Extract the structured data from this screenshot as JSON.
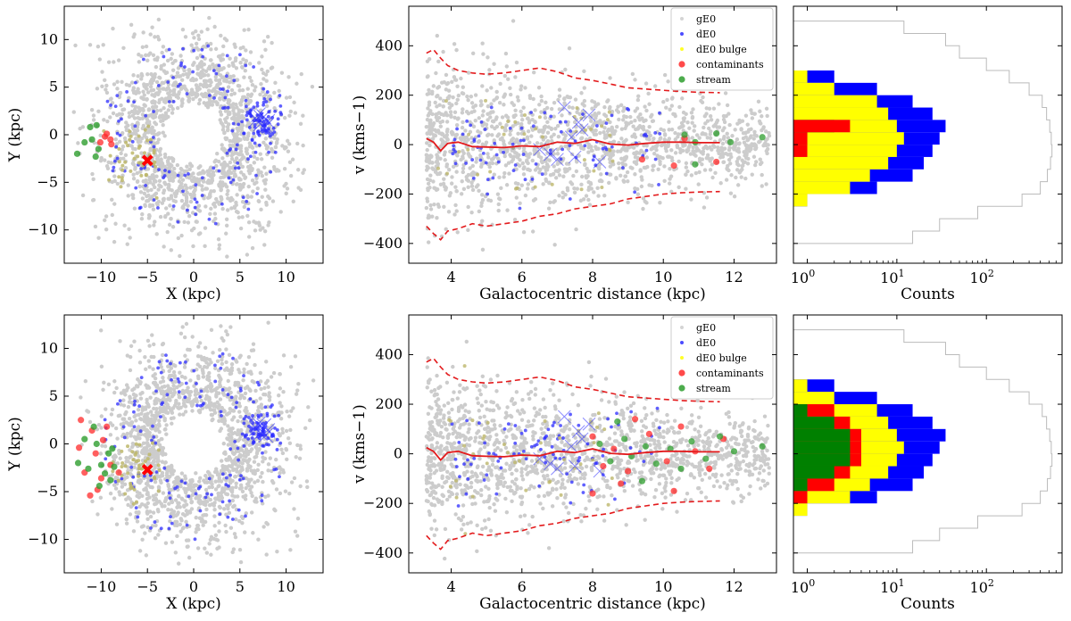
{
  "colors": {
    "gE0": "#cccccc",
    "dE0": "#2b2bff",
    "bulge": "#bdb76b",
    "contaminants": "#ff2a2a",
    "stream": "#2e9e2e",
    "median": "#e31a1c",
    "hist_blue": "#0000ff",
    "hist_yellow": "#ffff00",
    "hist_green": "#008000",
    "hist_red": "#ff0000",
    "hist_grey": "#bbbbbb",
    "marker": "#ff0000"
  },
  "chart_data": [
    {
      "type": "scatter",
      "name": "positions-top",
      "xlabel": "X (kpc)",
      "ylabel": "Y (kpc)",
      "xlim": [
        -14,
        14
      ],
      "ylim": [
        -13.5,
        13.5
      ],
      "xticks": [
        -10,
        -5,
        0,
        5,
        10
      ],
      "yticks": [
        -10,
        -5,
        0,
        5,
        10
      ],
      "xtick_labels": [
        "−10",
        "−5",
        "0",
        "5",
        "10"
      ],
      "ytick_labels": [
        "−10",
        "−5",
        "0",
        "5",
        "10"
      ],
      "progenitor_center": [
        -5,
        -2.7
      ],
      "stream_points": [
        [
          -11.2,
          0.8
        ],
        [
          -10.5,
          1.0
        ],
        [
          -11.8,
          -0.8
        ],
        [
          -10.3,
          -1.5
        ],
        [
          -10.6,
          -2.3
        ],
        [
          -12.6,
          -2.0
        ],
        [
          -11.0,
          -0.5
        ]
      ],
      "contaminant_points": [
        [
          -9.6,
          -0.2
        ],
        [
          -9.0,
          -0.5
        ],
        [
          -10.1,
          -0.8
        ],
        [
          -8.9,
          -1.0
        ],
        [
          -9.4,
          0.1
        ]
      ],
      "dE0_cross_points": [
        [
          6.8,
          1.6
        ],
        [
          7.2,
          1.1
        ],
        [
          7.6,
          1.9
        ],
        [
          8.0,
          1.4
        ],
        [
          7.0,
          2.1
        ],
        [
          7.8,
          0.9
        ]
      ]
    },
    {
      "type": "scatter",
      "name": "velocity-top",
      "xlabel": "Galactocentric distance (kpc)",
      "ylabel": "v (kms−1)",
      "xlim": [
        2.8,
        13.2
      ],
      "ylim": [
        -480,
        560
      ],
      "xticks": [
        4,
        6,
        8,
        10,
        12
      ],
      "yticks": [
        -400,
        -200,
        0,
        200,
        400
      ],
      "xtick_labels": [
        "4",
        "6",
        "8",
        "10",
        "12"
      ],
      "ytick_labels": [
        "−400",
        "−200",
        "0",
        "200",
        "400"
      ],
      "legend": {
        "position": "top-right",
        "entries": [
          "gE0",
          "dE0",
          "dE0 bulge",
          "contaminants",
          "stream"
        ]
      },
      "median_line": {
        "x": [
          3.3,
          3.5,
          3.7,
          3.9,
          4.2,
          4.6,
          5.0,
          5.5,
          6.0,
          6.5,
          7.0,
          7.5,
          8.0,
          8.5,
          9.0,
          9.5,
          10.0,
          10.5,
          11.0,
          11.6
        ],
        "y": [
          25,
          10,
          -25,
          5,
          10,
          -8,
          -10,
          -12,
          -5,
          -8,
          10,
          5,
          20,
          2,
          -2,
          5,
          10,
          10,
          8,
          8
        ]
      },
      "upper_envelope": {
        "x": [
          3.3,
          3.5,
          3.7,
          3.9,
          4.2,
          4.6,
          5.0,
          5.5,
          6.0,
          6.5,
          7.0,
          7.5,
          8.0,
          8.5,
          9.0,
          9.5,
          10.0,
          10.5,
          11.0,
          11.6
        ],
        "y": [
          370,
          385,
          350,
          320,
          300,
          290,
          285,
          290,
          300,
          310,
          295,
          270,
          260,
          245,
          230,
          225,
          220,
          215,
          212,
          210
        ]
      },
      "lower_envelope": {
        "x": [
          3.3,
          3.5,
          3.7,
          3.9,
          4.2,
          4.6,
          5.0,
          5.5,
          6.0,
          6.5,
          7.0,
          7.5,
          8.0,
          8.5,
          9.0,
          9.5,
          10.0,
          10.5,
          11.0,
          11.6
        ],
        "y": [
          -330,
          -360,
          -385,
          -350,
          -340,
          -320,
          -330,
          -320,
          -310,
          -290,
          -280,
          -260,
          -250,
          -240,
          -220,
          -210,
          -200,
          -195,
          -192,
          -190
        ]
      },
      "stream_points": [
        [
          10.6,
          40
        ],
        [
          10.9,
          10
        ],
        [
          11.5,
          45
        ],
        [
          11.9,
          10
        ],
        [
          12.8,
          30
        ],
        [
          10.9,
          -80
        ]
      ],
      "contaminant_points": [
        [
          9.4,
          -60
        ],
        [
          10.3,
          -85
        ],
        [
          11.5,
          -70
        ],
        [
          10.6,
          25
        ]
      ],
      "dE0_cross_points": [
        [
          6.5,
          -20
        ],
        [
          6.8,
          -40
        ],
        [
          7.0,
          -60
        ],
        [
          7.2,
          150
        ],
        [
          7.4,
          30
        ],
        [
          7.6,
          90
        ],
        [
          7.7,
          60
        ],
        [
          7.9,
          120
        ],
        [
          8.2,
          -70
        ],
        [
          7.5,
          -50
        ]
      ]
    },
    {
      "type": "histogram",
      "name": "hist-top",
      "orientation": "horizontal",
      "xlabel": "Counts",
      "xscale": "log",
      "xlim": [
        0.7,
        700
      ],
      "ylim": [
        -480,
        560
      ],
      "xticks": [
        1,
        10,
        100
      ],
      "xtick_labels": [
        "10^0",
        "10^1",
        "10^2"
      ],
      "bin_edges": [
        -400,
        -350,
        -300,
        -250,
        -200,
        -150,
        -100,
        -50,
        0,
        50,
        100,
        150,
        200,
        250,
        300,
        350,
        400,
        450,
        500
      ],
      "series": [
        {
          "name": "gE0",
          "counts": [
            15,
            30,
            80,
            250,
            400,
            480,
            520,
            540,
            530,
            510,
            470,
            420,
            300,
            180,
            100,
            50,
            35,
            12
          ]
        },
        {
          "name": "dE0",
          "counts": [
            0,
            0,
            0,
            1,
            6,
            15,
            20,
            25,
            30,
            35,
            25,
            15,
            6,
            2,
            0,
            0,
            0,
            0
          ]
        },
        {
          "name": "dE0 bulge",
          "counts": [
            0,
            0,
            0,
            1,
            3,
            5,
            8,
            10,
            12,
            10,
            8,
            6,
            2,
            1,
            0,
            0,
            0,
            0
          ]
        },
        {
          "name": "stream",
          "counts": [
            0,
            0,
            0,
            0,
            0,
            0,
            0,
            0,
            1,
            2,
            0,
            0,
            0,
            0,
            0,
            0,
            0,
            0
          ]
        },
        {
          "name": "contaminants",
          "counts": [
            0,
            0,
            0,
            0,
            0,
            0,
            0,
            1,
            1,
            3,
            0,
            0,
            0,
            0,
            0,
            0,
            0,
            0
          ]
        }
      ]
    },
    {
      "type": "scatter",
      "name": "positions-bottom",
      "xlabel": "X (kpc)",
      "ylabel": "Y (kpc)",
      "xlim": [
        -14,
        14
      ],
      "ylim": [
        -13.5,
        13.5
      ],
      "xticks": [
        -10,
        -5,
        0,
        5,
        10
      ],
      "yticks": [
        -10,
        -5,
        0,
        5,
        10
      ],
      "xtick_labels": [
        "−10",
        "−5",
        "0",
        "5",
        "10"
      ],
      "ytick_labels": [
        "−10",
        "−5",
        "0",
        "5",
        "10"
      ],
      "progenitor_center": [
        -5,
        -2.7
      ],
      "stream_points": [
        [
          -10.8,
          1.8
        ],
        [
          -11.8,
          0.5
        ],
        [
          -10.5,
          0.0
        ],
        [
          -9.2,
          -1.0
        ],
        [
          -10.0,
          -2.2
        ],
        [
          -11.4,
          -2.6
        ],
        [
          -8.6,
          -2.4
        ],
        [
          -9.6,
          -3.1
        ],
        [
          -12.5,
          -2.0
        ],
        [
          -8.8,
          -0.5
        ],
        [
          -10.2,
          -4.4
        ],
        [
          -9.0,
          -3.8
        ]
      ],
      "contaminant_points": [
        [
          -12.2,
          2.5
        ],
        [
          -11.0,
          1.4
        ],
        [
          -9.4,
          1.8
        ],
        [
          -10.6,
          -1.0
        ],
        [
          -11.8,
          -3.0
        ],
        [
          -9.0,
          -2.2
        ],
        [
          -10.4,
          -4.8
        ],
        [
          -8.1,
          -3.0
        ],
        [
          -9.8,
          0.4
        ],
        [
          -11.2,
          -5.4
        ],
        [
          -12.4,
          -0.4
        ],
        [
          -10.0,
          -3.6
        ]
      ],
      "dE0_cross_points": [
        [
          6.8,
          1.6
        ],
        [
          7.2,
          1.1
        ],
        [
          7.6,
          1.9
        ],
        [
          8.0,
          1.4
        ],
        [
          7.0,
          2.1
        ],
        [
          7.8,
          0.9
        ]
      ]
    },
    {
      "type": "scatter",
      "name": "velocity-bottom",
      "xlabel": "Galactocentric distance (kpc)",
      "ylabel": "v (kms−1)",
      "xlim": [
        2.8,
        13.2
      ],
      "ylim": [
        -480,
        560
      ],
      "xticks": [
        4,
        6,
        8,
        10,
        12
      ],
      "yticks": [
        -400,
        -200,
        0,
        200,
        400
      ],
      "xtick_labels": [
        "4",
        "6",
        "8",
        "10",
        "12"
      ],
      "ytick_labels": [
        "−400",
        "−200",
        "0",
        "200",
        "400"
      ],
      "legend": {
        "position": "top-right",
        "entries": [
          "gE0",
          "dE0",
          "dE0 bulge",
          "contaminants",
          "stream"
        ]
      },
      "median_line": {
        "x": [
          3.3,
          3.5,
          3.7,
          3.9,
          4.2,
          4.6,
          5.0,
          5.5,
          6.0,
          6.5,
          7.0,
          7.5,
          8.0,
          8.5,
          9.0,
          9.5,
          10.0,
          10.5,
          11.0,
          11.6
        ],
        "y": [
          25,
          10,
          -25,
          5,
          10,
          -8,
          -10,
          -12,
          -5,
          -8,
          10,
          5,
          20,
          2,
          -2,
          5,
          10,
          10,
          8,
          8
        ]
      },
      "upper_envelope": {
        "x": [
          3.3,
          3.5,
          3.7,
          3.9,
          4.2,
          4.6,
          5.0,
          5.5,
          6.0,
          6.5,
          7.0,
          7.5,
          8.0,
          8.5,
          9.0,
          9.5,
          10.0,
          10.5,
          11.0,
          11.6
        ],
        "y": [
          370,
          385,
          350,
          320,
          300,
          290,
          285,
          290,
          300,
          310,
          295,
          270,
          260,
          245,
          230,
          225,
          220,
          215,
          212,
          210
        ]
      },
      "lower_envelope": {
        "x": [
          3.3,
          3.5,
          3.7,
          3.9,
          4.2,
          4.6,
          5.0,
          5.5,
          6.0,
          6.5,
          7.0,
          7.5,
          8.0,
          8.5,
          9.0,
          9.5,
          10.0,
          10.5,
          11.0,
          11.6
        ],
        "y": [
          -330,
          -360,
          -385,
          -350,
          -340,
          -320,
          -330,
          -320,
          -310,
          -290,
          -280,
          -260,
          -250,
          -240,
          -220,
          -210,
          -200,
          -195,
          -192,
          -190
        ]
      },
      "stream_points": [
        [
          8.2,
          40
        ],
        [
          8.5,
          -30
        ],
        [
          8.9,
          60
        ],
        [
          9.1,
          -10
        ],
        [
          9.5,
          30
        ],
        [
          9.8,
          -40
        ],
        [
          10.2,
          20
        ],
        [
          10.5,
          -60
        ],
        [
          10.8,
          50
        ],
        [
          11.2,
          -20
        ],
        [
          11.6,
          70
        ],
        [
          12.0,
          10
        ],
        [
          12.8,
          30
        ],
        [
          8.7,
          130
        ],
        [
          9.4,
          -110
        ]
      ],
      "contaminant_points": [
        [
          8.0,
          70
        ],
        [
          8.3,
          -50
        ],
        [
          8.6,
          20
        ],
        [
          8.0,
          -160
        ],
        [
          9.0,
          -70
        ],
        [
          9.6,
          80
        ],
        [
          10.1,
          -30
        ],
        [
          10.5,
          110
        ],
        [
          10.9,
          10
        ],
        [
          11.3,
          -60
        ],
        [
          11.7,
          60
        ],
        [
          9.2,
          140
        ],
        [
          8.8,
          -120
        ],
        [
          10.3,
          -150
        ]
      ],
      "dE0_cross_points": [
        [
          6.5,
          -20
        ],
        [
          6.8,
          -40
        ],
        [
          7.0,
          -60
        ],
        [
          7.2,
          150
        ],
        [
          7.4,
          30
        ],
        [
          7.6,
          90
        ],
        [
          7.7,
          60
        ],
        [
          7.9,
          120
        ],
        [
          8.2,
          -70
        ],
        [
          7.5,
          -50
        ]
      ]
    },
    {
      "type": "histogram",
      "name": "hist-bottom",
      "orientation": "horizontal",
      "xlabel": "Counts",
      "xscale": "log",
      "xlim": [
        0.7,
        700
      ],
      "ylim": [
        -480,
        560
      ],
      "xticks": [
        1,
        10,
        100
      ],
      "xtick_labels": [
        "10^0",
        "10^1",
        "10^2"
      ],
      "bin_edges": [
        -400,
        -350,
        -300,
        -250,
        -200,
        -150,
        -100,
        -50,
        0,
        50,
        100,
        150,
        200,
        250,
        300,
        350,
        400,
        450,
        500
      ],
      "series": [
        {
          "name": "gE0",
          "counts": [
            15,
            30,
            80,
            250,
            400,
            480,
            520,
            540,
            530,
            510,
            470,
            420,
            300,
            180,
            100,
            50,
            35,
            12
          ]
        },
        {
          "name": "dE0",
          "counts": [
            0,
            0,
            0,
            1,
            6,
            15,
            20,
            25,
            30,
            35,
            25,
            15,
            6,
            2,
            0,
            0,
            0,
            0
          ]
        },
        {
          "name": "dE0 bulge",
          "counts": [
            0,
            0,
            0,
            1,
            3,
            5,
            8,
            10,
            12,
            10,
            8,
            6,
            2,
            1,
            0,
            0,
            0,
            0
          ]
        },
        {
          "name": "contaminants",
          "counts": [
            0,
            0,
            0,
            0,
            1,
            2,
            3,
            4,
            4,
            4,
            3,
            2,
            0,
            0,
            0,
            0,
            0,
            0
          ]
        },
        {
          "name": "stream",
          "counts": [
            0,
            0,
            0,
            0,
            0,
            1,
            2,
            3,
            3,
            3,
            2,
            1,
            0,
            0,
            0,
            0,
            0,
            0
          ]
        }
      ]
    }
  ]
}
